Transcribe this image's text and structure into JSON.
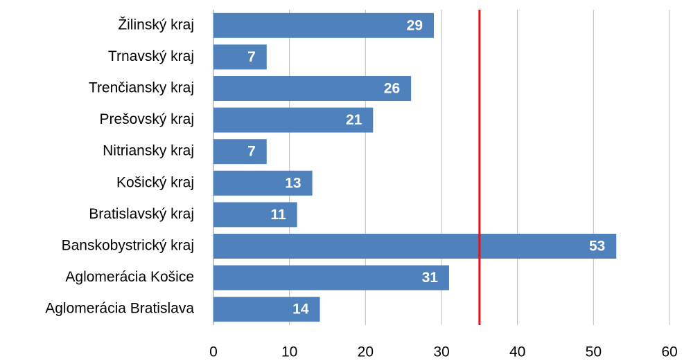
{
  "chart_data": {
    "type": "bar",
    "orientation": "horizontal",
    "categories": [
      "Žilinský kraj",
      "Trnavský kraj",
      "Trenčiansky kraj",
      "Prešovský kraj",
      "Nitriansky kraj",
      "Košický kraj",
      "Bratislavský kraj",
      "Banskobystrický kraj",
      "Aglomerácia Košice",
      "Aglomerácia Bratislava"
    ],
    "values": [
      29,
      7,
      26,
      21,
      7,
      13,
      11,
      53,
      31,
      14
    ],
    "color": "#4f81bd",
    "xlim": [
      0,
      60
    ],
    "xticks": [
      0,
      10,
      20,
      30,
      40,
      50,
      60
    ],
    "grid": true,
    "reference_line": {
      "value": 35,
      "color": "#e0141e"
    }
  }
}
